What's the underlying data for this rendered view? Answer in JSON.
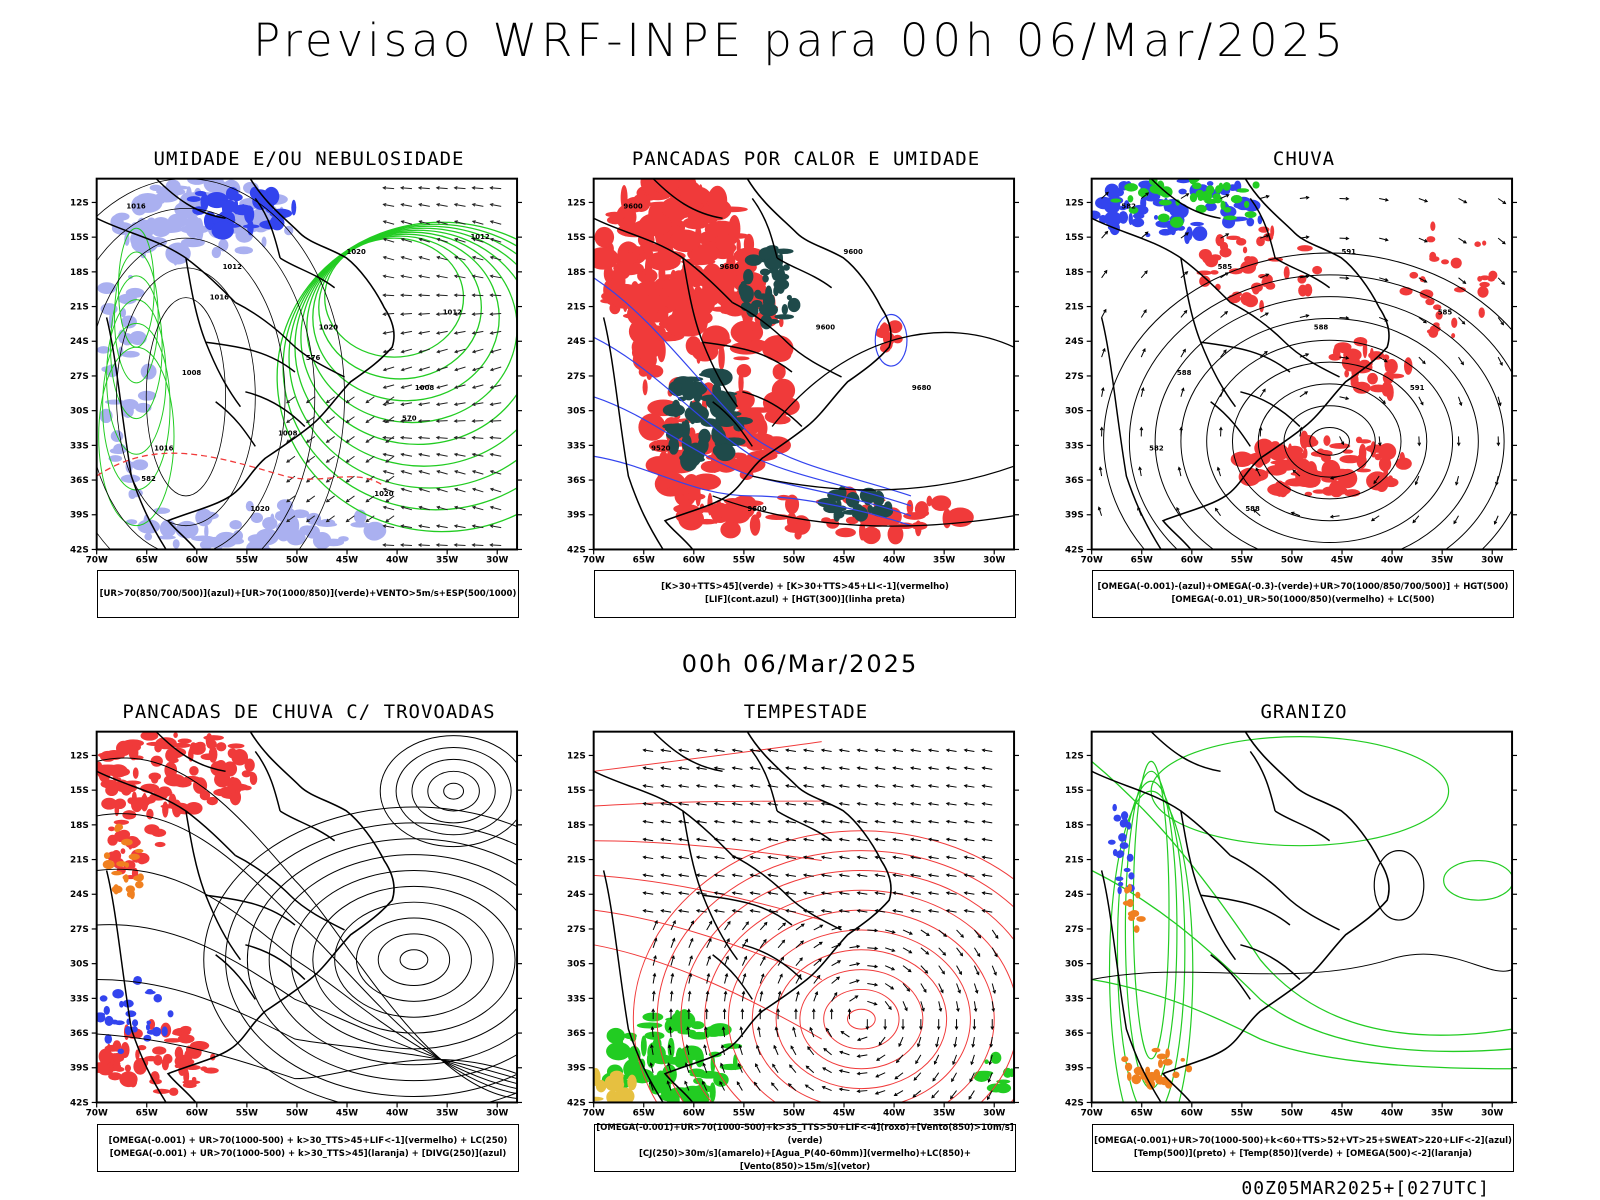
{
  "header": {
    "title": "Previsao WRF-INPE  para 00h 06/Mar/2025"
  },
  "mid_label": "00h 06/Mar/2025",
  "footer": "00Z05MAR2025+[027UTC]",
  "axes": {
    "lat_ticks": [
      "12S",
      "15S",
      "18S",
      "21S",
      "24S",
      "27S",
      "30S",
      "33S",
      "36S",
      "39S",
      "42S"
    ],
    "lon_ticks": [
      "70W",
      "65W",
      "60W",
      "55W",
      "50W",
      "45W",
      "40W",
      "35W",
      "30W"
    ]
  },
  "colors": {
    "red": "#f03a3a",
    "green": "#22cc22",
    "blue": "#3344ee",
    "lightblue": "#aab0f0",
    "teal": "#1f4a4a",
    "orange": "#f08020",
    "yellow": "#e6c040"
  },
  "panels": [
    {
      "id": "umidade",
      "title": "UMIDADE E/OU NEBULOSIDADE",
      "legend": [
        "[UR>70(850/700/500)](azul)+[UR>70(1000/850)](verde)+VENTO>5m/s+ESP(500/1000)"
      ],
      "contour_labels": [
        "1016",
        "1012",
        "1020",
        "1008",
        "1016",
        "1020",
        "1020",
        "1012",
        "1008",
        "1008",
        "1020",
        "1012",
        "1016",
        "576",
        "570",
        "582"
      ]
    },
    {
      "id": "pancadas-calor",
      "title": "PANCADAS POR CALOR E UMIDADE",
      "legend": [
        "[K>30+TTS>45](verde) + [K>30+TTS>45+LI<-1](vermelho)",
        "[LIF](cont.azul) + [HGT(300)](linha preta)"
      ],
      "contour_labels": [
        "9600",
        "9680",
        "9600",
        "9680",
        "9520",
        "9600",
        "9600"
      ]
    },
    {
      "id": "chuva",
      "title": "CHUVA",
      "legend": [
        "[OMEGA(-0.001)-(azul)+OMEGA(-0.3)-(verde)+UR>70(1000/850/700/500)] + HGT(500)",
        "[OMEGA(-0.01)_UR>50(1000/850)(vermelho) + LC(500)"
      ],
      "contour_labels": [
        "582",
        "585",
        "588",
        "591",
        "582",
        "588",
        "591",
        "585",
        "588"
      ]
    },
    {
      "id": "pancadas-trovoadas",
      "title": "PANCADAS DE CHUVA C/ TROVOADAS",
      "legend": [
        "[OMEGA(-0.001) + UR>70(1000-500) + k>30_TTS>45+LIF<-1](vermelho) + LC(250)",
        "[OMEGA(-0.001) + UR>70(1000-500) + k>30_TTS>45](laranja) + [DIVG(250)](azul)"
      ],
      "contour_labels": []
    },
    {
      "id": "tempestade",
      "title": "TEMPESTADE",
      "legend": [
        "[OMEGA(-0.001)+UR>70(1000-500)+k>35_TTS>50+LIF<-4](roxo)+[Vento(850)>10m/s](verde)",
        "[CJ(250)>30m/s](amarelo)+[Agua_P(40-60mm)](vermelho)+LC(850)+[Vento(850)>15m/s](vetor)"
      ],
      "contour_labels": []
    },
    {
      "id": "granizo",
      "title": "GRANIZO",
      "legend": [
        "[OMEGA(-0.001)+UR>70(1000-500)+k<60+TTS>52+VT>25+SWEAT>220+LIF<-2](azul)",
        "[Temp(500)](preto) + [Temp(850)](verde) + [OMEGA(500)<-2](laranja)"
      ],
      "contour_labels": []
    }
  ]
}
